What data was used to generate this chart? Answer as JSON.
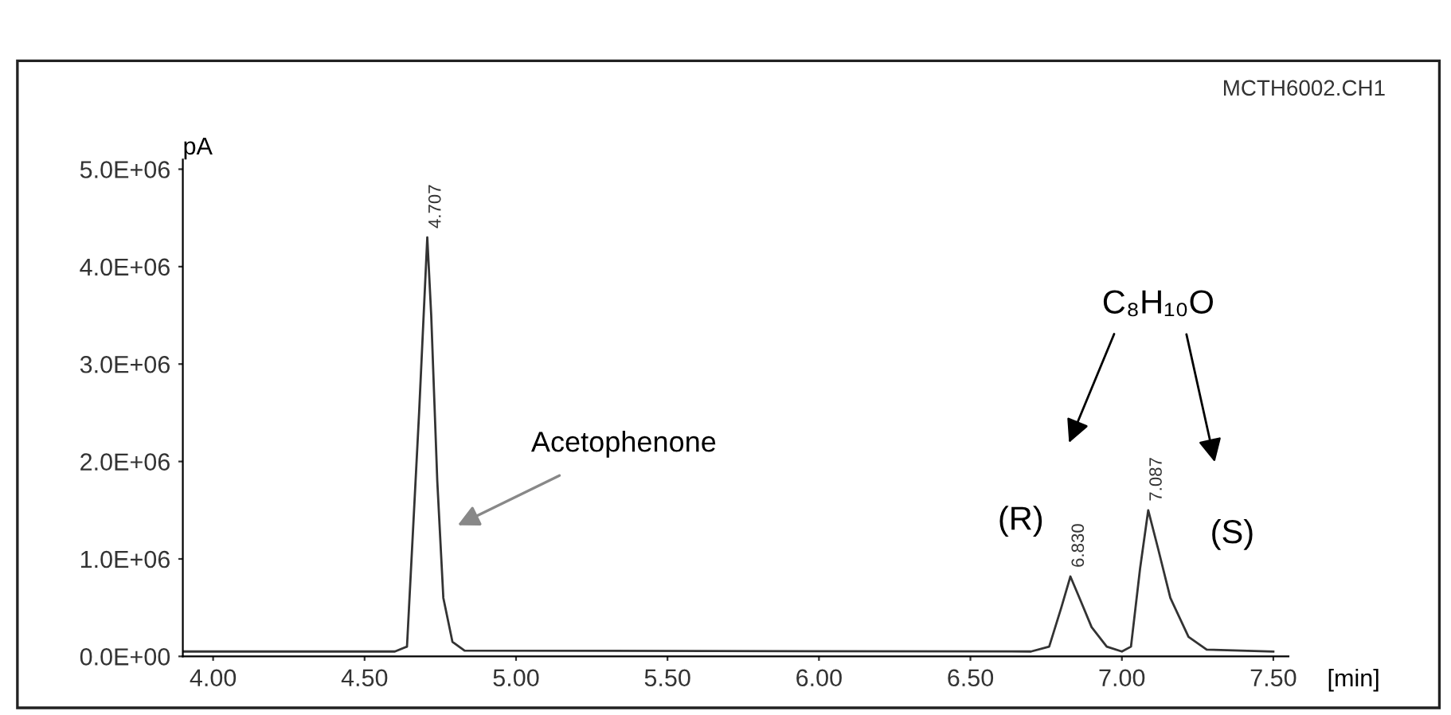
{
  "chart_data": {
    "type": "line",
    "ylabel": "pA",
    "xlabel": "[min]",
    "color": "#333333",
    "x": [
      3.9,
      4.6,
      4.64,
      4.68,
      4.707,
      4.72,
      4.74,
      4.76,
      4.79,
      4.83,
      6.7,
      6.76,
      6.8,
      6.83,
      6.86,
      6.9,
      6.95,
      7.0,
      7.03,
      7.06,
      7.087,
      7.12,
      7.16,
      7.22,
      7.28,
      7.5
    ],
    "values": [
      50000,
      50000,
      100000,
      2500000,
      4300000,
      3500000,
      1800000,
      600000,
      150000,
      60000,
      50000,
      100000,
      500000,
      820000,
      600000,
      300000,
      100000,
      50000,
      100000,
      900000,
      1500000,
      1100000,
      600000,
      200000,
      70000,
      50000
    ],
    "xlim": [
      3.9,
      7.55
    ],
    "xticks": [
      {
        "value": 4.0,
        "label": "4.00"
      },
      {
        "value": 4.5,
        "label": "4.50"
      },
      {
        "value": 5.0,
        "label": "5.00"
      },
      {
        "value": 5.5,
        "label": "5.50"
      },
      {
        "value": 6.0,
        "label": "6.00"
      },
      {
        "value": 6.5,
        "label": "6.50"
      },
      {
        "value": 7.0,
        "label": "7.00"
      },
      {
        "value": 7.5,
        "label": "7.50"
      }
    ],
    "ylim": [
      0,
      5100000
    ],
    "yticks": [
      {
        "value": 0,
        "label": "0.0E+00"
      },
      {
        "value": 1000000,
        "label": "1.0E+06"
      },
      {
        "value": 2000000,
        "label": "2.0E+06"
      },
      {
        "value": 3000000,
        "label": "3.0E+06"
      },
      {
        "value": 4000000,
        "label": "4.0E+06"
      },
      {
        "value": 5000000,
        "label": "5.0E+06"
      }
    ],
    "grid": false,
    "marker": "none",
    "line_style": "solid",
    "annotations": [
      "MCTH6002.CH1",
      {
        "text": "4.707",
        "x": 4.707,
        "y": 4300000
      },
      {
        "text": "6.830",
        "x": 6.83,
        "y": 820000
      },
      {
        "text": "7.087",
        "x": 7.087,
        "y": 1500000
      },
      "Acetophenone",
      {
        "text": "(R)",
        "x": 6.83,
        "y": 820000
      },
      {
        "text": "(S)",
        "x": 7.087,
        "y": 1500000
      },
      "C₈H₁₀O"
    ]
  }
}
